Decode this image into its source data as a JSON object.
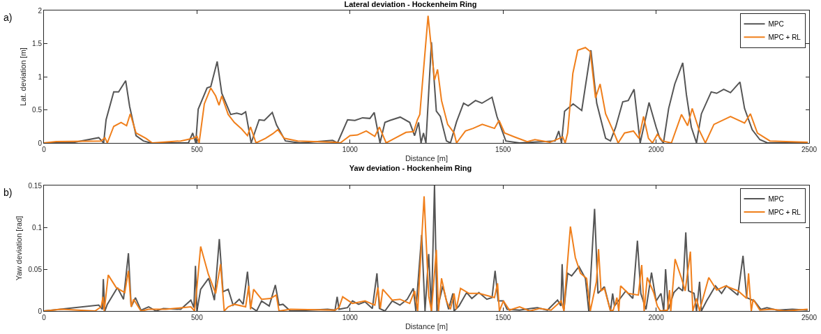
{
  "chart_data": [
    {
      "type": "line",
      "title": "Lateral deviation - Hockenheim Ring",
      "xlabel": "Distance [m]",
      "ylabel": "Lat. deviation [m]",
      "annotations": [
        "a)"
      ],
      "xlim": [
        0,
        2500
      ],
      "xticks": [
        0,
        500,
        1000,
        1500,
        2000,
        2500
      ],
      "ylim": [
        0,
        2
      ],
      "yticks": [
        0,
        0.5,
        1,
        1.5,
        2
      ],
      "grid": false,
      "legend": "top right",
      "line_style": "solid",
      "marker": "none",
      "series": [
        {
          "name": "MPC",
          "color": "#555555",
          "x": [
            0,
            100,
            179,
            195,
            203,
            228,
            244,
            267,
            280,
            301,
            325,
            350,
            472,
            486,
            496,
            504,
            533,
            545,
            566,
            581,
            610,
            630,
            646,
            659,
            677,
            703,
            720,
            746,
            760,
            789,
            837,
            943,
            959,
            992,
            1016,
            1041,
            1065,
            1079,
            1098,
            1114,
            1130,
            1164,
            1195,
            1211,
            1224,
            1232,
            1240,
            1248,
            1266,
            1282,
            1295,
            1315,
            1328,
            1348,
            1371,
            1386,
            1410,
            1431,
            1464,
            1480,
            1509,
            1554,
            1670,
            1682,
            1691,
            1701,
            1729,
            1757,
            1787,
            1806,
            1835,
            1851,
            1868,
            1891,
            1909,
            1928,
            1948,
            1977,
            2000,
            2012,
            2024,
            2041,
            2061,
            2087,
            2099,
            2115,
            2132,
            2148,
            2180,
            2198,
            2221,
            2243,
            2274,
            2289,
            2314,
            2339,
            2364,
            2495
          ],
          "values": [
            0,
            0.01,
            0.08,
            0,
            0.35,
            0.77,
            0.77,
            0.94,
            0.55,
            0.11,
            0.03,
            0,
            0,
            0.15,
            0,
            0.51,
            0.83,
            0.85,
            1.23,
            0.75,
            0.43,
            0.45,
            0.43,
            0.47,
            0,
            0.35,
            0.34,
            0.46,
            0.27,
            0.03,
            0,
            0.04,
            0,
            0.35,
            0.34,
            0.38,
            0.37,
            0.46,
            0,
            0.31,
            0.34,
            0.39,
            0.31,
            0.11,
            0.31,
            0,
            0.15,
            0,
            1.52,
            0.48,
            0.4,
            0.03,
            0,
            0.32,
            0.6,
            0.56,
            0.64,
            0.6,
            0.69,
            0.4,
            0.03,
            0,
            0.03,
            0.18,
            0,
            0.48,
            0.59,
            0.49,
            1.4,
            0.6,
            0.07,
            0.03,
            0.24,
            0.62,
            0.64,
            0.81,
            0,
            0.61,
            0.24,
            0.07,
            0,
            0.52,
            0.89,
            1.21,
            0.73,
            0.24,
            0,
            0.44,
            0.77,
            0.75,
            0.81,
            0.76,
            0.92,
            0.52,
            0.2,
            0.05,
            0,
            0.01
          ]
        },
        {
          "name": "MPC + RL",
          "color": "#f07f1b",
          "x": [
            0,
            40,
            187,
            199,
            207,
            228,
            252,
            270,
            282,
            301,
            333,
            354,
            447,
            488,
            500,
            507,
            524,
            545,
            561,
            572,
            581,
            602,
            622,
            646,
            665,
            675,
            693,
            724,
            748,
            764,
            785,
            829,
            951,
            968,
            1000,
            1024,
            1053,
            1081,
            1096,
            1118,
            1146,
            1183,
            1208,
            1220,
            1228,
            1255,
            1276,
            1286,
            1299,
            1319,
            1340,
            1348,
            1377,
            1402,
            1432,
            1472,
            1487,
            1505,
            1538,
            1579,
            1604,
            1653,
            1695,
            1703,
            1711,
            1728,
            1744,
            1769,
            1785,
            1802,
            1817,
            1835,
            1860,
            1876,
            1897,
            1926,
            1944,
            1959,
            1975,
            1988,
            2004,
            2021,
            2050,
            2083,
            2103,
            2118,
            2140,
            2161,
            2189,
            2243,
            2289,
            2308,
            2331,
            2372,
            2495
          ],
          "values": [
            0,
            0.02,
            0.03,
            0.08,
            0,
            0.25,
            0.31,
            0.26,
            0.44,
            0.15,
            0.07,
            0,
            0.03,
            0.07,
            0.1,
            0,
            0.59,
            0.83,
            0.71,
            0.57,
            0.71,
            0.43,
            0.31,
            0.21,
            0.11,
            0.24,
            0,
            0.07,
            0.14,
            0.2,
            0.07,
            0.03,
            0.01,
            0,
            0.11,
            0.12,
            0.18,
            0.1,
            0.24,
            0,
            0.07,
            0.16,
            0.17,
            0.35,
            0.43,
            1.92,
            0.95,
            1.11,
            0.64,
            0.28,
            0.15,
            0,
            0.18,
            0.22,
            0.28,
            0.22,
            0.34,
            0.15,
            0.09,
            0.02,
            0.05,
            0.01,
            0.09,
            0,
            0.15,
            1.05,
            1.4,
            1.44,
            1.38,
            0.68,
            0.89,
            0.44,
            0.18,
            0,
            0.15,
            0.18,
            0.07,
            0.4,
            0.07,
            0,
            0.13,
            0.03,
            0,
            0.43,
            0.26,
            0.52,
            0.2,
            0,
            0.28,
            0.4,
            0.3,
            0.44,
            0.15,
            0.03,
            0.01
          ]
        }
      ]
    },
    {
      "type": "line",
      "title": "Yaw deviation - Hockenheim Ring",
      "xlabel": "Distance [m]",
      "ylabel": "Yaw deviation [rad]",
      "annotations": [
        "b)"
      ],
      "xlim": [
        0,
        2500
      ],
      "xticks": [
        0,
        500,
        1000,
        1500,
        2000,
        2500
      ],
      "ylim": [
        0,
        0.15
      ],
      "yticks": [
        0,
        0.05,
        0.1,
        0.15
      ],
      "grid": false,
      "legend": "top right",
      "line_style": "solid",
      "marker": "none",
      "series": [
        {
          "name": "MPC",
          "color": "#555555",
          "x": [
            0,
            179,
            191,
            194,
            199,
            207,
            240,
            260,
            276,
            285,
            299,
            317,
            342,
            366,
            390,
            447,
            480,
            490,
            495,
            500,
            512,
            538,
            557,
            573,
            585,
            602,
            618,
            638,
            651,
            665,
            675,
            695,
            711,
            736,
            756,
            768,
            781,
            805,
            927,
            951,
            958,
            964,
            992,
            1008,
            1028,
            1049,
            1073,
            1088,
            1096,
            1114,
            1138,
            1163,
            1187,
            1207,
            1215,
            1234,
            1245,
            1257,
            1266,
            1276,
            1284,
            1303,
            1322,
            1336,
            1340,
            1356,
            1381,
            1398,
            1421,
            1447,
            1464,
            1474,
            1484,
            1501,
            1513,
            1554,
            1612,
            1645,
            1678,
            1689,
            1693,
            1699,
            1711,
            1724,
            1748,
            1769,
            1780,
            1799,
            1810,
            1831,
            1851,
            1858,
            1864,
            1901,
            1924,
            1939,
            1950,
            1967,
            1985,
            2000,
            2016,
            2025,
            2031,
            2040,
            2058,
            2074,
            2087,
            2097,
            2106,
            2124,
            2132,
            2142,
            2148,
            2165,
            2194,
            2214,
            2230,
            2267,
            2284,
            2296,
            2321,
            2342,
            2362,
            2395,
            2445,
            2495
          ],
          "values": [
            0,
            0.007,
            0.002,
            0.038,
            0,
            0.008,
            0.028,
            0.014,
            0.069,
            0.005,
            0.016,
            0.001,
            0.005,
            0,
            0.003,
            0.002,
            0.013,
            0.004,
            0.054,
            0,
            0.026,
            0.039,
            0.013,
            0.086,
            0.023,
            0.026,
            0.007,
            0.014,
            0.008,
            0.047,
            0.005,
            0,
            0.012,
            0.006,
            0.031,
            0.007,
            0.008,
            0,
            0.002,
            0.001,
            0.017,
            0.002,
            0.004,
            0.012,
            0.008,
            0.011,
            0.003,
            0.045,
            0.003,
            0,
            0.012,
            0.007,
            0.014,
            0.027,
            0,
            0.091,
            0,
            0.068,
            0,
            0.15,
            0,
            0.03,
            0.002,
            0.021,
            0,
            0.006,
            0.022,
            0.015,
            0.022,
            0.014,
            0.016,
            0.048,
            0.012,
            0.012,
            0.002,
            0.001,
            0.004,
            0.001,
            0.013,
            0.006,
            0.056,
            0.002,
            0.045,
            0.042,
            0.053,
            0.039,
            0,
            0.122,
            0.021,
            0.029,
            0,
            0.021,
            0.006,
            0.024,
            0.015,
            0.084,
            0.021,
            0.002,
            0.046,
            0.012,
            0.021,
            0,
            0.05,
            0.002,
            0.022,
            0.028,
            0.024,
            0.094,
            0.024,
            0.021,
            0,
            0.035,
            0,
            0.012,
            0.03,
            0.021,
            0.03,
            0.019,
            0.066,
            0.016,
            0.012,
            0.002,
            0.004,
            0.001,
            0.002,
            0.001
          ]
        },
        {
          "name": "MPC + RL",
          "color": "#f07f1b",
          "x": [
            0,
            57,
            167,
            187,
            193,
            197,
            210,
            236,
            264,
            276,
            285,
            293,
            317,
            342,
            398,
            480,
            492,
            500,
            512,
            537,
            561,
            577,
            589,
            602,
            622,
            659,
            669,
            675,
            685,
            711,
            740,
            759,
            768,
            805,
            951,
            964,
            976,
            1008,
            1049,
            1081,
            1091,
            1099,
            1107,
            1138,
            1163,
            1195,
            1211,
            1221,
            1242,
            1257,
            1266,
            1282,
            1289,
            1299,
            1315,
            1328,
            1340,
            1347,
            1361,
            1389,
            1422,
            1472,
            1482,
            1488,
            1501,
            1521,
            1554,
            1587,
            1620,
            1657,
            1690,
            1699,
            1705,
            1720,
            1736,
            1753,
            1773,
            1785,
            1805,
            1812,
            1820,
            1831,
            1851,
            1860,
            1872,
            1878,
            1884,
            1909,
            1942,
            1953,
            1961,
            1971,
            1992,
            2004,
            2014,
            2037,
            2044,
            2048,
            2062,
            2083,
            2095,
            2112,
            2120,
            2132,
            2142,
            2153,
            2172,
            2198,
            2227,
            2268,
            2296,
            2302,
            2311,
            2317,
            2339,
            2380,
            2421,
            2495
          ],
          "values": [
            0,
            0.002,
            0,
            0.005,
            0.017,
            0,
            0.043,
            0.028,
            0.022,
            0.048,
            0.005,
            0.014,
            0,
            0.002,
            0.002,
            0.005,
            0,
            0.029,
            0.077,
            0.044,
            0.021,
            0.056,
            0,
            0.005,
            0.008,
            0.005,
            0.03,
            0.002,
            0.026,
            0.014,
            0.015,
            0.019,
            0,
            0.002,
            0.001,
            0.004,
            0.017,
            0.009,
            0.012,
            0.007,
            0.028,
            0.003,
            0.026,
            0.013,
            0.014,
            0.009,
            0.024,
            0,
            0.137,
            0.018,
            0,
            0.073,
            0,
            0.039,
            0.012,
            0.002,
            0.021,
            0.002,
            0.027,
            0.021,
            0.021,
            0.016,
            0.033,
            0,
            0.012,
            0.001,
            0.005,
            0,
            0.003,
            0.001,
            0.012,
            0,
            0.033,
            0.101,
            0.064,
            0.045,
            0.039,
            0,
            0.035,
            0.074,
            0.024,
            0.027,
            0,
            0.001,
            0.016,
            0,
            0.03,
            0.021,
            0.019,
            0.055,
            0,
            0.04,
            0.022,
            0.006,
            0,
            0.001,
            0.025,
            0,
            0.062,
            0.039,
            0.024,
            0.071,
            0,
            0.015,
            0,
            0.015,
            0.04,
            0.025,
            0.03,
            0.024,
            0.015,
            0.045,
            0,
            0.014,
            0.001,
            0.002,
            0,
            0.002
          ]
        }
      ]
    }
  ]
}
